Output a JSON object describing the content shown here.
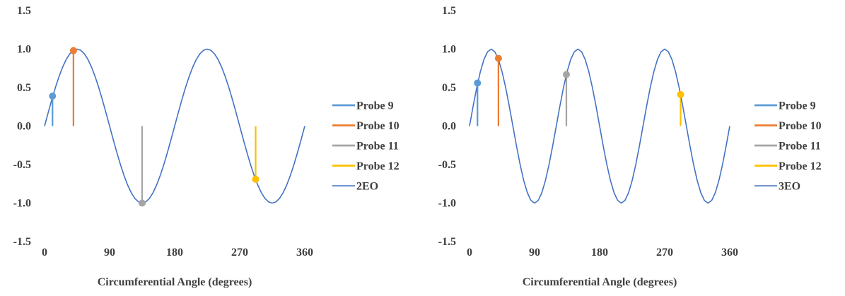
{
  "chart_data": [
    {
      "type": "line",
      "title": "",
      "xlabel": "Circumferential Angle (degrees)",
      "ylabel": "",
      "xlim": [
        0,
        360
      ],
      "ylim": [
        -1.5,
        1.5
      ],
      "xticks": [
        "0",
        "90",
        "180",
        "270",
        "360"
      ],
      "yticks": [
        "1.5",
        "1.0",
        "0.5",
        "0.0",
        "-0.5",
        "-1.0",
        "-1.5"
      ],
      "x_ticks_bold": false,
      "grid": false,
      "legend_position": "right",
      "curve": {
        "name": "2EO",
        "function": "sin",
        "order": 2,
        "color": "#4472C4",
        "x_step": 5
      },
      "probes": [
        {
          "name": "Probe 9",
          "x": 11,
          "y": 0.39,
          "color": "#5B9BD5"
        },
        {
          "name": "Probe 10",
          "x": 40,
          "y": 0.98,
          "color": "#ED7D31"
        },
        {
          "name": "Probe 11",
          "x": 135,
          "y": -1.0,
          "color": "#A5A5A5"
        },
        {
          "name": "Probe 12",
          "x": 292,
          "y": -0.69,
          "color": "#FFC000"
        }
      ]
    },
    {
      "type": "line",
      "title": "",
      "xlabel": "Circumferential Angle (degrees)",
      "ylabel": "",
      "xlim": [
        0,
        360
      ],
      "ylim": [
        -1.5,
        1.5
      ],
      "xticks": [
        "0",
        "90",
        "180",
        "270",
        "360"
      ],
      "yticks": [
        "1.5",
        "1.0",
        "0.5",
        "0.0",
        "-0.5",
        "-1.0",
        "-1.5"
      ],
      "x_ticks_bold": true,
      "grid": false,
      "legend_position": "right",
      "curve": {
        "name": "3EO",
        "function": "sin",
        "order": 3,
        "color": "#4472C4",
        "x_step": 5
      },
      "probes": [
        {
          "name": "Probe 9",
          "x": 11,
          "y": 0.56,
          "color": "#5B9BD5"
        },
        {
          "name": "Probe 10",
          "x": 40,
          "y": 0.88,
          "color": "#ED7D31"
        },
        {
          "name": "Probe 11",
          "x": 134,
          "y": 0.67,
          "color": "#A5A5A5"
        },
        {
          "name": "Probe 12",
          "x": 292,
          "y": 0.41,
          "color": "#FFC000"
        }
      ]
    }
  ]
}
